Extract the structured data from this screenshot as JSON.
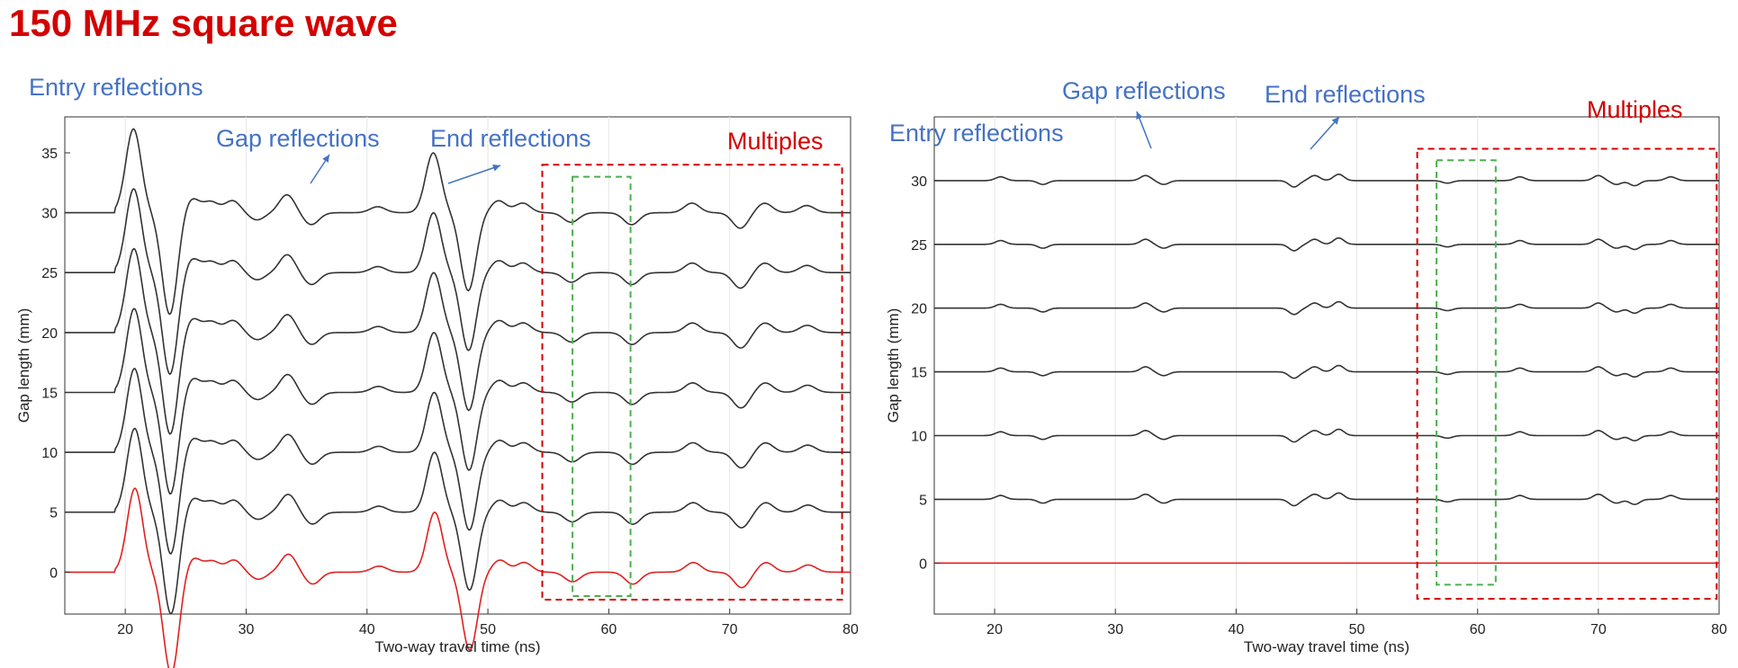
{
  "page_title": "150 MHz square wave",
  "colors": {
    "title": "#d40000",
    "annotation": "#4472c4",
    "multiples_box": "#d40000",
    "green_box": "#4caf50",
    "trace": "#333333",
    "reference_trace": "#e02020"
  },
  "chart_data": [
    {
      "type": "line",
      "xlabel": "Two-way travel time (ns)",
      "ylabel": "Gap length (mm)",
      "xlim": [
        15,
        80
      ],
      "ylim": [
        -3.5,
        38
      ],
      "xticks": [
        20,
        30,
        40,
        50,
        60,
        70,
        80
      ],
      "yticks": [
        0,
        5,
        10,
        15,
        20,
        25,
        30,
        35
      ],
      "grid": "vertical",
      "trace_offsets": [
        0,
        5,
        10,
        15,
        20,
        25,
        30
      ],
      "wavelet_events": [
        {
          "t": 20.8,
          "amp": 7.0
        },
        {
          "t": 23.8,
          "amp": -8.5
        },
        {
          "t": 25.6,
          "amp": 1.2
        },
        {
          "t": 27.2,
          "amp": 0.9
        },
        {
          "t": 29.0,
          "amp": 1.0
        },
        {
          "t": 31.0,
          "amp": -0.6
        },
        {
          "t": 33.5,
          "amp": 1.5
        },
        {
          "t": 35.5,
          "amp": -1.0
        },
        {
          "t": 41.0,
          "amp": 0.5
        },
        {
          "t": 45.6,
          "amp": 5.0
        },
        {
          "t": 48.5,
          "amp": -6.5
        },
        {
          "t": 51.0,
          "amp": 1.0
        },
        {
          "t": 53.0,
          "amp": 0.8
        },
        {
          "t": 57.0,
          "amp": -0.8
        },
        {
          "t": 62.0,
          "amp": -1.0
        },
        {
          "t": 67.0,
          "amp": 0.8
        },
        {
          "t": 71.0,
          "amp": -1.3
        },
        {
          "t": 73.0,
          "amp": 0.8
        },
        {
          "t": 76.5,
          "amp": 0.6
        }
      ],
      "annotations": [
        {
          "text": "Entry reflections",
          "color": "blue"
        },
        {
          "text": "Gap reflections",
          "color": "blue"
        },
        {
          "text": "End reflections",
          "color": "blue"
        },
        {
          "text": "Multiples",
          "color": "red"
        }
      ],
      "multiples_box": {
        "x": [
          54.5,
          79.3
        ],
        "y": [
          -2.3,
          34.0
        ]
      },
      "green_box": {
        "x": [
          57.0,
          61.8
        ],
        "y": [
          -2.0,
          33.0
        ]
      }
    },
    {
      "type": "line",
      "xlabel": "Two-way travel time (ns)",
      "ylabel": "Gap length (mm)",
      "xlim": [
        15,
        80
      ],
      "ylim": [
        -4,
        35
      ],
      "xticks": [
        20,
        30,
        40,
        50,
        60,
        70,
        80
      ],
      "yticks": [
        0,
        5,
        10,
        15,
        20,
        25,
        30
      ],
      "grid": "vertical",
      "trace_offsets": [
        0,
        5,
        10,
        15,
        20,
        25,
        30
      ],
      "wavelet_events": [
        {
          "t": 20.5,
          "amp": 0.3
        },
        {
          "t": 24.0,
          "amp": -0.3
        },
        {
          "t": 32.5,
          "amp": 0.4
        },
        {
          "t": 34.0,
          "amp": -0.3
        },
        {
          "t": 44.8,
          "amp": -0.5
        },
        {
          "t": 46.5,
          "amp": 0.4
        },
        {
          "t": 48.5,
          "amp": 0.5
        },
        {
          "t": 57.5,
          "amp": -0.2
        },
        {
          "t": 63.5,
          "amp": 0.3
        },
        {
          "t": 70.0,
          "amp": 0.4
        },
        {
          "t": 71.5,
          "amp": -0.3
        },
        {
          "t": 73.0,
          "amp": -0.4
        },
        {
          "t": 76.0,
          "amp": 0.3
        }
      ],
      "annotations": [
        {
          "text": "Entry reflections",
          "color": "blue"
        },
        {
          "text": "Gap reflections",
          "color": "blue"
        },
        {
          "text": "End reflections",
          "color": "blue"
        },
        {
          "text": "Multiples",
          "color": "red"
        }
      ],
      "multiples_box": {
        "x": [
          55.0,
          79.8
        ],
        "y": [
          -2.8,
          32.5
        ]
      },
      "green_box": {
        "x": [
          56.6,
          61.5
        ],
        "y": [
          -1.7,
          31.6
        ]
      }
    }
  ]
}
